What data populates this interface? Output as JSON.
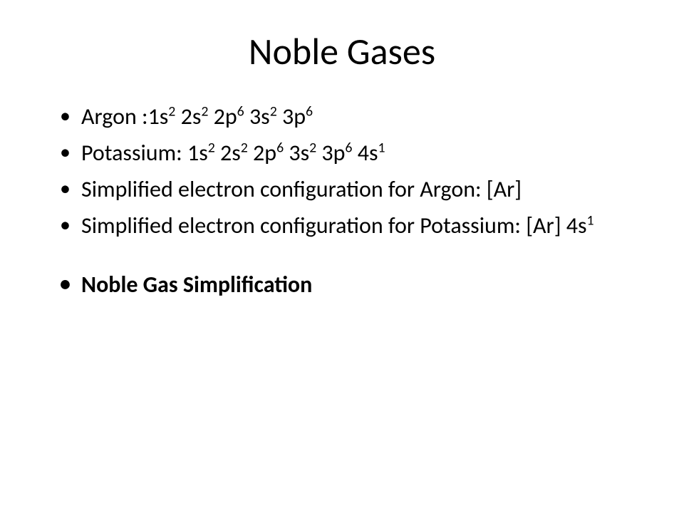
{
  "title": "Noble Gases",
  "bullets": [
    {
      "prefix": "Argon :",
      "config": [
        {
          "orb": "1s",
          "sup": "2"
        },
        {
          "orb": "2s",
          "sup": "2"
        },
        {
          "orb": "2p",
          "sup": "6"
        },
        {
          "orb": "3s",
          "sup": "2"
        },
        {
          "orb": "3p",
          "sup": "6"
        }
      ],
      "bold": false
    },
    {
      "prefix": "Potassium: ",
      "config": [
        {
          "orb": "1s",
          "sup": "2"
        },
        {
          "orb": "2s",
          "sup": "2"
        },
        {
          "orb": "2p",
          "sup": "6"
        },
        {
          "orb": "3s",
          "sup": "2"
        },
        {
          "orb": "3p",
          "sup": "6"
        },
        {
          "orb": "4s",
          "sup": "1"
        }
      ],
      "bold": false
    },
    {
      "prefix": "Simplified electron configuration for Argon: [Ar]",
      "config": [],
      "bold": false
    },
    {
      "prefix": "Simplified electron configuration for Potassium: [Ar] ",
      "config": [
        {
          "orb": "4s",
          "sup": "1"
        }
      ],
      "bold": false
    },
    {
      "prefix": "Noble Gas Simplification",
      "config": [],
      "bold": true,
      "gapBefore": true
    }
  ],
  "style": {
    "background": "#ffffff",
    "text_color": "#000000",
    "title_fontsize": 52,
    "body_fontsize": 32,
    "font_family": "Calibri"
  }
}
